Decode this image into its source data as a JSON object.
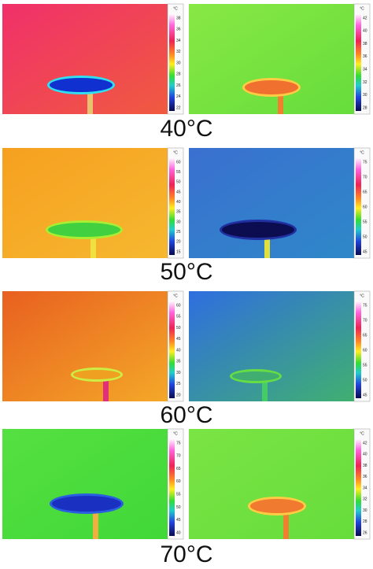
{
  "rows": [
    {
      "label": "40°C",
      "left": {
        "unit": "°C",
        "ticks": [
          "38",
          "36",
          "34",
          "32",
          "30",
          "28",
          "26",
          "24",
          "22"
        ]
      },
      "right": {
        "unit": "°C",
        "ticks": [
          "42",
          "40",
          "38",
          "36",
          "34",
          "32",
          "30",
          "28"
        ]
      }
    },
    {
      "label": "50°C",
      "left": {
        "unit": "°C",
        "ticks": [
          "60",
          "55",
          "50",
          "45",
          "40",
          "35",
          "30",
          "25",
          "20",
          "15"
        ]
      },
      "right": {
        "unit": "°C",
        "ticks": [
          "75",
          "70",
          "65",
          "60",
          "55",
          "50",
          "45"
        ]
      }
    },
    {
      "label": "60°C",
      "left": {
        "unit": "°C",
        "ticks": [
          "60",
          "55",
          "50",
          "45",
          "40",
          "35",
          "30",
          "25",
          "20"
        ]
      },
      "right": {
        "unit": "°C",
        "ticks": [
          "75",
          "70",
          "65",
          "60",
          "55",
          "50",
          "45"
        ]
      }
    },
    {
      "label": "70°C",
      "left": {
        "unit": "°C",
        "ticks": [
          "75",
          "70",
          "65",
          "60",
          "55",
          "50",
          "45",
          "40"
        ]
      },
      "right": {
        "unit": "°C",
        "ticks": [
          "42",
          "40",
          "38",
          "36",
          "34",
          "32",
          "30",
          "28",
          "26"
        ]
      }
    }
  ]
}
